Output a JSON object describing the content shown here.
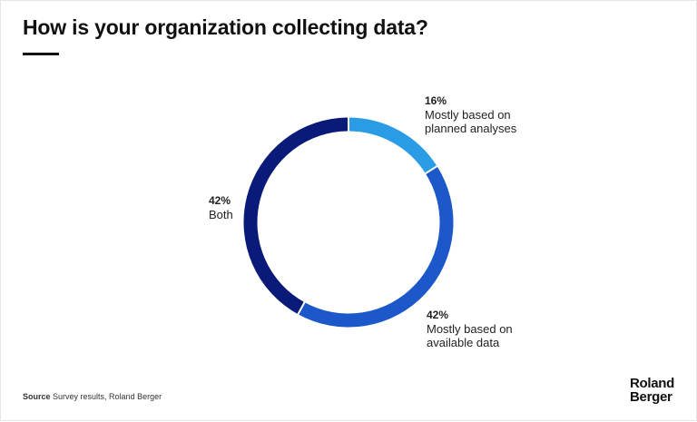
{
  "title": "How is your organization collecting data?",
  "chart_data": {
    "type": "pie",
    "style": "donut",
    "slices": [
      {
        "pct_label": "16%",
        "value": 16,
        "label": "Mostly based on planned analyses",
        "color": "#2a9ce6"
      },
      {
        "pct_label": "42%",
        "value": 42,
        "label": "Mostly based on available data",
        "color": "#1c58c9"
      },
      {
        "pct_label": "42%",
        "value": 42,
        "label": "Both",
        "color": "#0a1a78"
      }
    ]
  },
  "source": {
    "prefix": "Source",
    "text": "Survey results, Roland Berger"
  },
  "logo": {
    "line1": "Roland",
    "line2": "Berger"
  }
}
